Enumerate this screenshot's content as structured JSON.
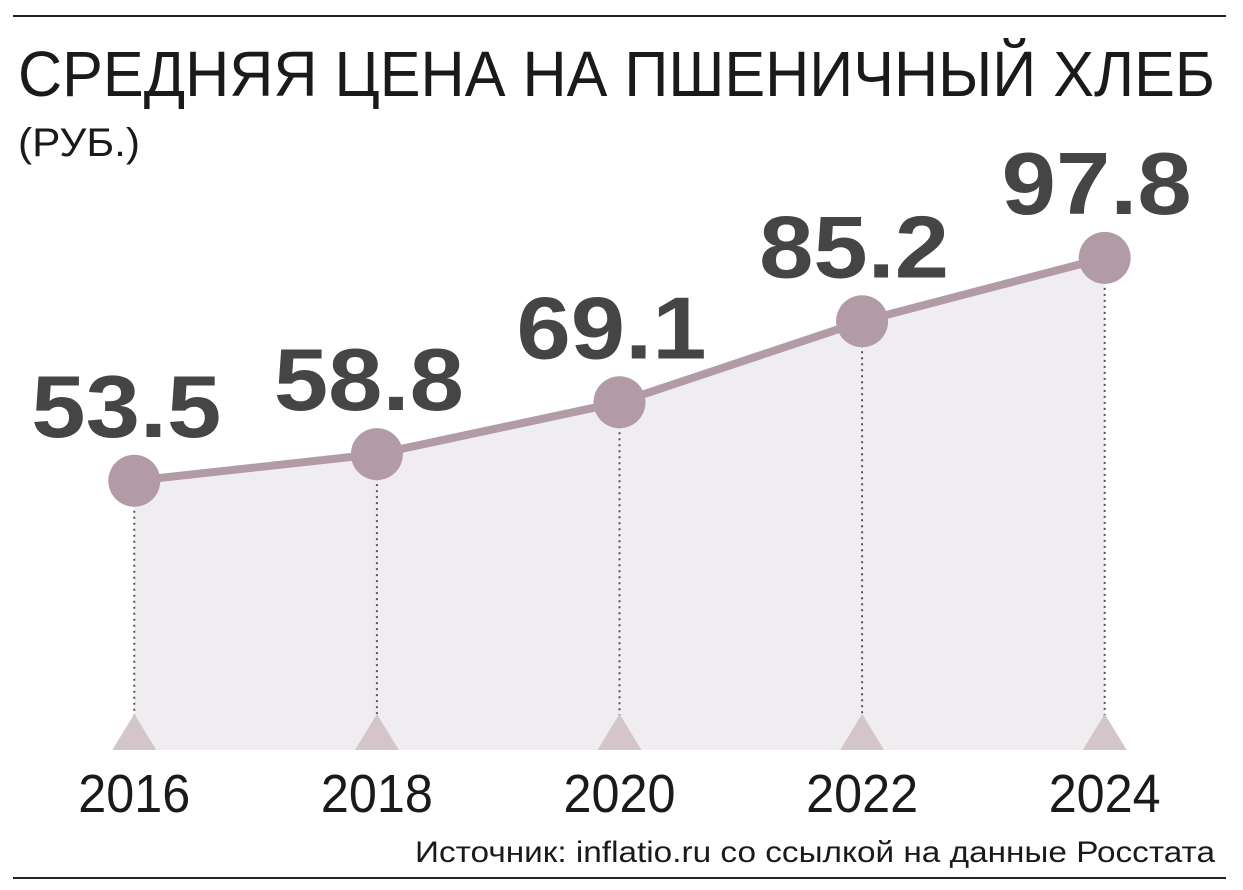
{
  "chart_data": {
    "type": "line",
    "title": "СРЕДНЯЯ ЦЕНА НА ПШЕНИЧНЫЙ ХЛЕБ",
    "subtitle": "(РУБ.)",
    "categories": [
      "2016",
      "2018",
      "2020",
      "2022",
      "2024"
    ],
    "values": [
      53.5,
      58.8,
      69.1,
      85.2,
      97.8
    ],
    "color": "#b29ba6",
    "ylim": [
      0,
      125
    ],
    "source": "Источник: inflatio.ru со ссылкой на данные Росстата"
  }
}
